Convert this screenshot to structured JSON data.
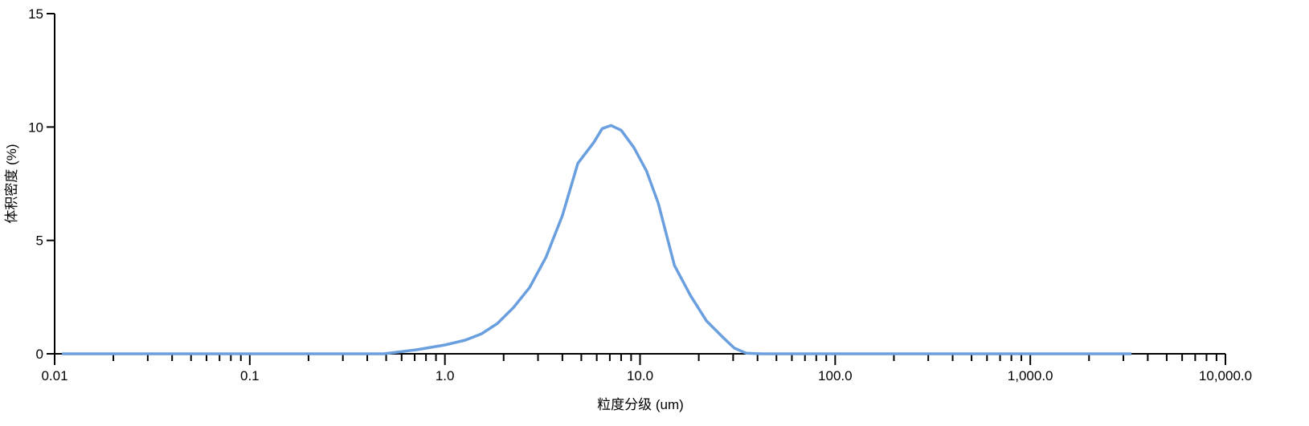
{
  "chart_data": {
    "type": "line",
    "title": "",
    "xlabel": "粒度分级 (um)",
    "ylabel": "体积密度 (%)",
    "xscale": "log",
    "xlim": [
      0.01,
      10000
    ],
    "ylim": [
      0,
      15
    ],
    "grid": false,
    "x_ticks": [
      "0.01",
      "0.1",
      "1.0",
      "10.0",
      "100.0",
      "1,000.0",
      "10,000.0"
    ],
    "y_ticks": [
      "0",
      "5",
      "10",
      "15"
    ],
    "line_color": "#6a9fdf",
    "series": [
      {
        "x": [
          0.0109,
          0.1,
          0.487,
          0.72,
          1.0,
          1.27,
          1.54,
          1.86,
          2.25,
          2.72,
          3.3,
          4.0,
          4.8,
          5.8,
          6.4,
          7.1,
          8.0,
          9.3,
          10.8,
          12.4,
          15.0,
          18.1,
          21.9,
          26.5,
          30.4,
          35,
          42,
          100,
          1000,
          3300
        ],
        "y": [
          0,
          0,
          0,
          0.18,
          0.39,
          0.6,
          0.88,
          1.34,
          2.05,
          2.93,
          4.27,
          6.1,
          8.4,
          9.33,
          9.93,
          10.07,
          9.86,
          9.1,
          8.06,
          6.64,
          3.9,
          2.58,
          1.45,
          0.74,
          0.25,
          0.03,
          0,
          0,
          0,
          0
        ]
      }
    ]
  }
}
